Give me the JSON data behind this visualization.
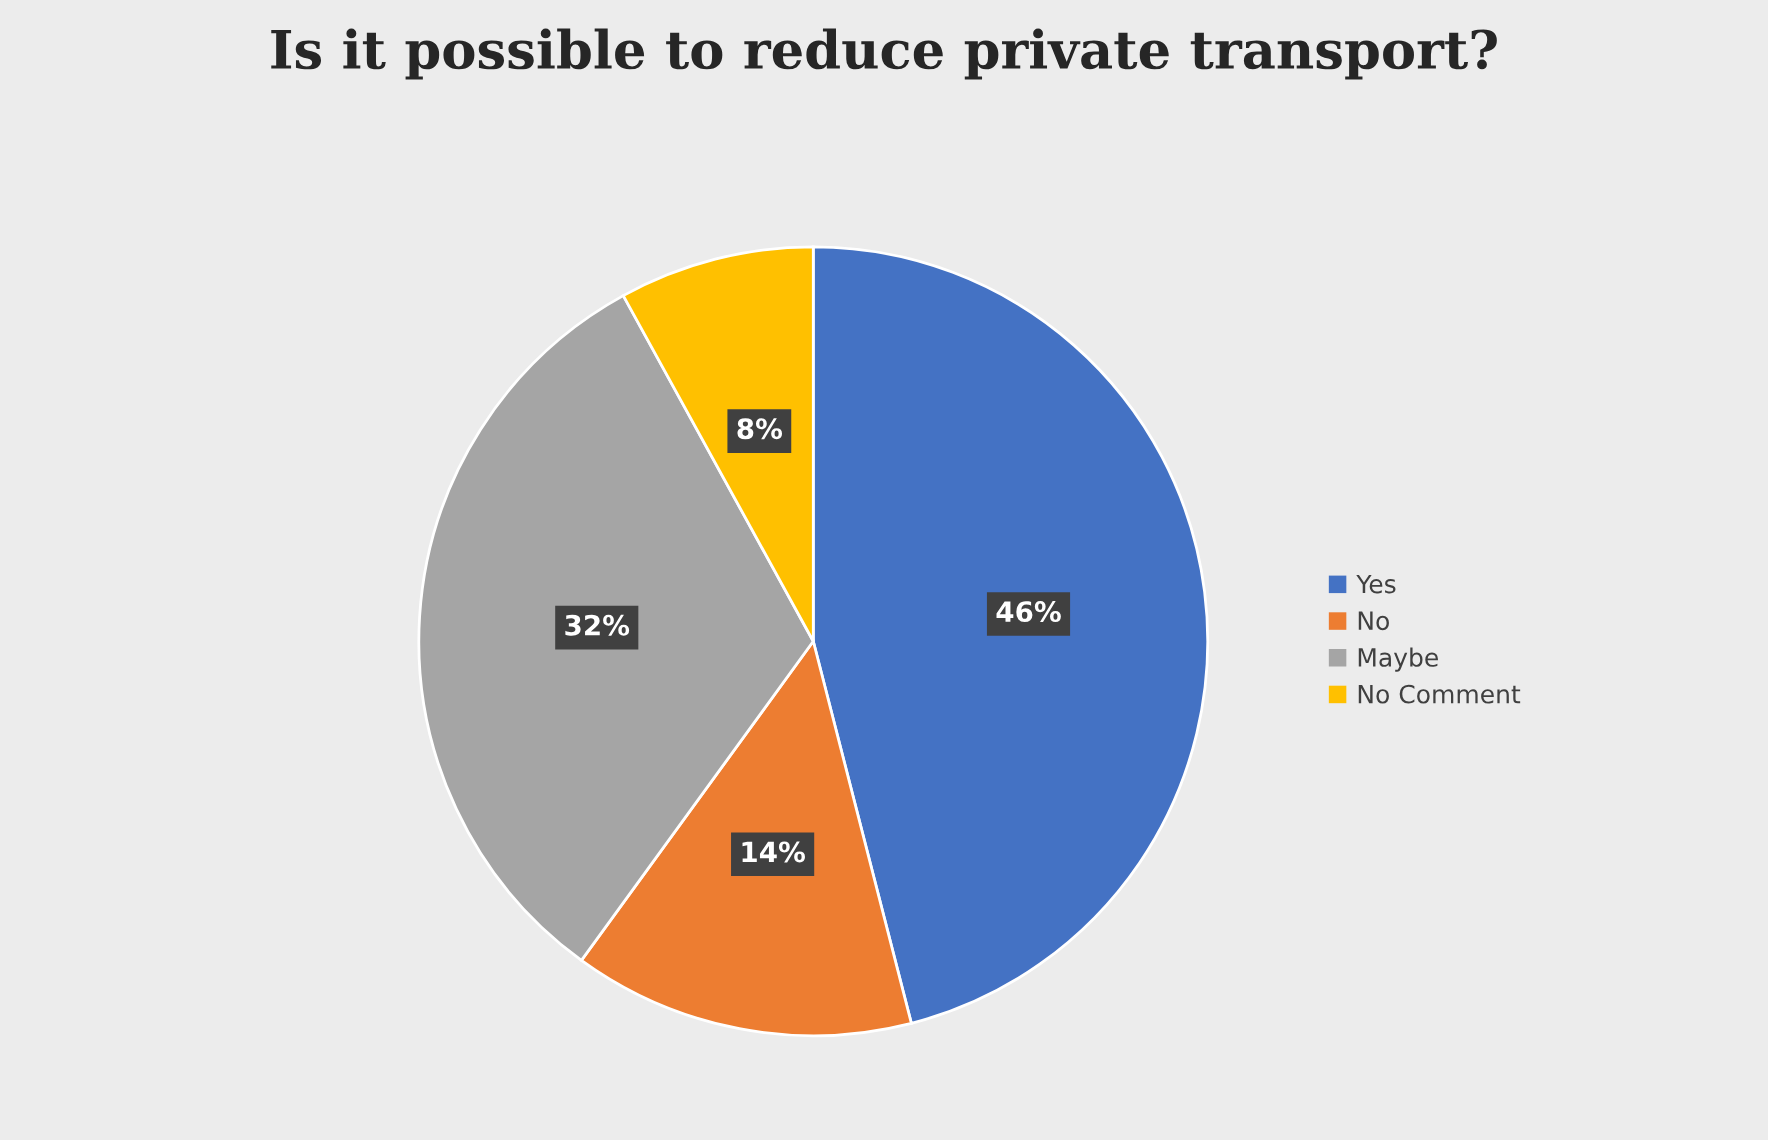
{
  "chart_data": {
    "type": "pie",
    "title": "Is it possible to reduce private transport?",
    "categories": [
      "Yes",
      "No",
      "Maybe",
      "No Comment"
    ],
    "values": [
      46,
      14,
      32,
      8
    ],
    "colors": [
      "#4472c4",
      "#ed7d31",
      "#a5a5a5",
      "#ffc000"
    ],
    "value_labels": [
      "46%",
      "14%",
      "32%",
      "8%"
    ],
    "legend": "right"
  }
}
